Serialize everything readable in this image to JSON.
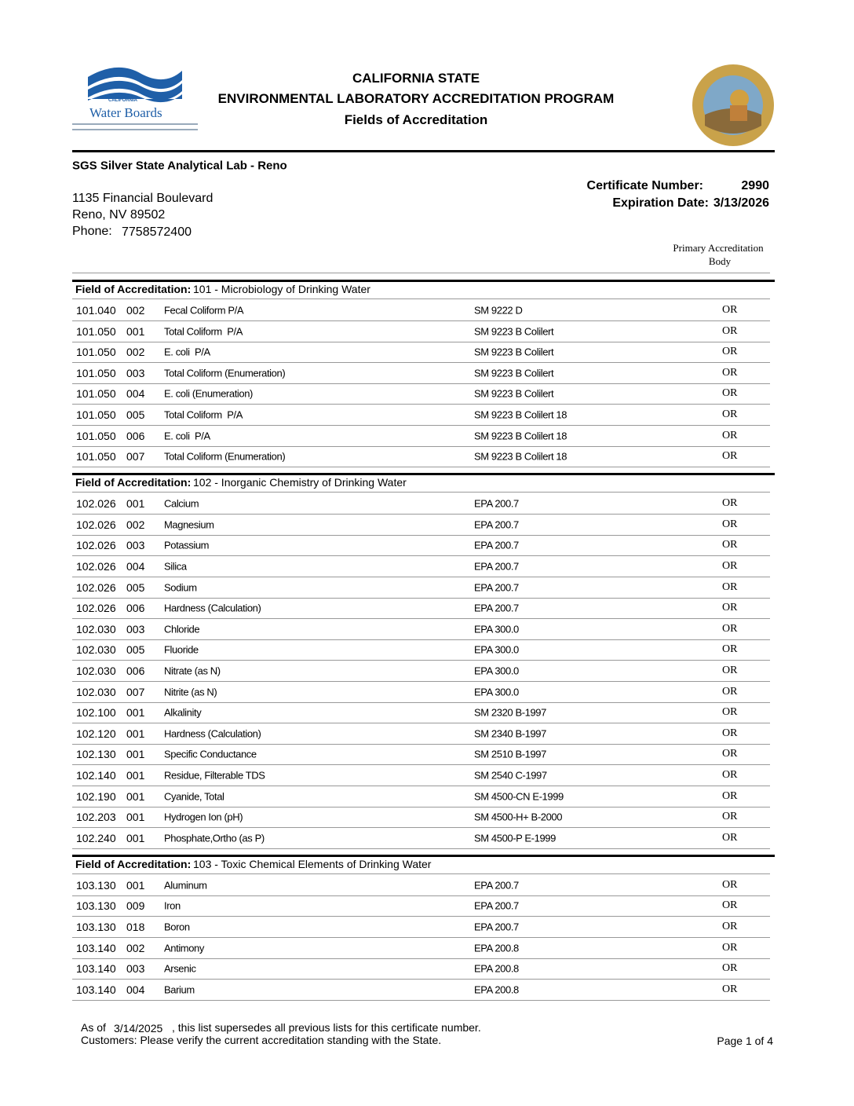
{
  "header": {
    "logo": {
      "state": "CALIFORNIA",
      "name": "Water Boards"
    },
    "lines": [
      "CALIFORNIA STATE",
      "ENVIRONMENTAL LABORATORY ACCREDITATION PROGRAM",
      "Fields of Accreditation"
    ]
  },
  "lab": {
    "name": "SGS Silver State Analytical Lab - Reno",
    "address": [
      "1135 Financial Boulevard",
      "Reno, NV 89502"
    ],
    "phone_label": "Phone:",
    "phone": "7758572400"
  },
  "certificate": {
    "number_label": "Certificate Number:",
    "number": "2990",
    "expiration_label": "Expiration Date:",
    "expiration": "3/13/2026"
  },
  "column_header": [
    "Primary Accreditation",
    "Body"
  ],
  "sections": [
    {
      "label": "Field of Accreditation:",
      "title": "101 - Microbiology of Drinking Water",
      "rows": [
        [
          "101.040",
          "002",
          "Fecal Coliform P/A",
          "SM 9222 D",
          "OR"
        ],
        [
          "101.050",
          "001",
          "Total Coliform  P/A",
          "SM 9223 B Colilert",
          "OR"
        ],
        [
          "101.050",
          "002",
          "E. coli  P/A",
          "SM 9223 B Colilert",
          "OR"
        ],
        [
          "101.050",
          "003",
          "Total Coliform (Enumeration)",
          "SM 9223 B Colilert",
          "OR"
        ],
        [
          "101.050",
          "004",
          "E. coli (Enumeration)",
          "SM 9223 B Colilert",
          "OR"
        ],
        [
          "101.050",
          "005",
          "Total Coliform  P/A",
          "SM 9223 B Colilert 18",
          "OR"
        ],
        [
          "101.050",
          "006",
          "E. coli  P/A",
          "SM 9223 B Colilert 18",
          "OR"
        ],
        [
          "101.050",
          "007",
          "Total Coliform (Enumeration)",
          "SM 9223 B Colilert 18",
          "OR"
        ]
      ]
    },
    {
      "label": "Field of Accreditation:",
      "title": "102 - Inorganic Chemistry of Drinking Water",
      "rows": [
        [
          "102.026",
          "001",
          "Calcium",
          "EPA 200.7",
          "OR"
        ],
        [
          "102.026",
          "002",
          "Magnesium",
          "EPA 200.7",
          "OR"
        ],
        [
          "102.026",
          "003",
          "Potassium",
          "EPA 200.7",
          "OR"
        ],
        [
          "102.026",
          "004",
          "Silica",
          "EPA 200.7",
          "OR"
        ],
        [
          "102.026",
          "005",
          "Sodium",
          "EPA 200.7",
          "OR"
        ],
        [
          "102.026",
          "006",
          "Hardness (Calculation)",
          "EPA 200.7",
          "OR"
        ],
        [
          "102.030",
          "003",
          "Chloride",
          "EPA 300.0",
          "OR"
        ],
        [
          "102.030",
          "005",
          "Fluoride",
          "EPA 300.0",
          "OR"
        ],
        [
          "102.030",
          "006",
          "Nitrate (as N)",
          "EPA 300.0",
          "OR"
        ],
        [
          "102.030",
          "007",
          "Nitrite (as N)",
          "EPA 300.0",
          "OR"
        ],
        [
          "102.100",
          "001",
          "Alkalinity",
          "SM 2320 B-1997",
          "OR"
        ],
        [
          "102.120",
          "001",
          "Hardness (Calculation)",
          "SM 2340 B-1997",
          "OR"
        ],
        [
          "102.130",
          "001",
          "Specific Conductance",
          "SM 2510 B-1997",
          "OR"
        ],
        [
          "102.140",
          "001",
          "Residue, Filterable TDS",
          "SM 2540 C-1997",
          "OR"
        ],
        [
          "102.190",
          "001",
          "Cyanide, Total",
          "SM 4500-CN E-1999",
          "OR"
        ],
        [
          "102.203",
          "001",
          "Hydrogen Ion (pH)",
          "SM 4500-H+ B-2000",
          "OR"
        ],
        [
          "102.240",
          "001",
          "Phosphate,Ortho (as P)",
          "SM 4500-P E-1999",
          "OR"
        ]
      ]
    },
    {
      "label": "Field of Accreditation:",
      "title": "103 - Toxic Chemical Elements of Drinking Water",
      "rows": [
        [
          "103.130",
          "001",
          "Aluminum",
          "EPA 200.7",
          "OR"
        ],
        [
          "103.130",
          "009",
          "Iron",
          "EPA 200.7",
          "OR"
        ],
        [
          "103.130",
          "018",
          "Boron",
          "EPA 200.7",
          "OR"
        ],
        [
          "103.140",
          "002",
          "Antimony",
          "EPA 200.8",
          "OR"
        ],
        [
          "103.140",
          "003",
          "Arsenic",
          "EPA 200.8",
          "OR"
        ],
        [
          "103.140",
          "004",
          "Barium",
          "EPA 200.8",
          "OR"
        ]
      ]
    }
  ],
  "footer": {
    "as_of": "As of",
    "date": "3/14/2025",
    "supersedes": ", this list supersedes all previous lists for this certificate number.",
    "notice": "Customers: Please verify the current accreditation standing with the State.",
    "page": "Page 1 of 4"
  }
}
